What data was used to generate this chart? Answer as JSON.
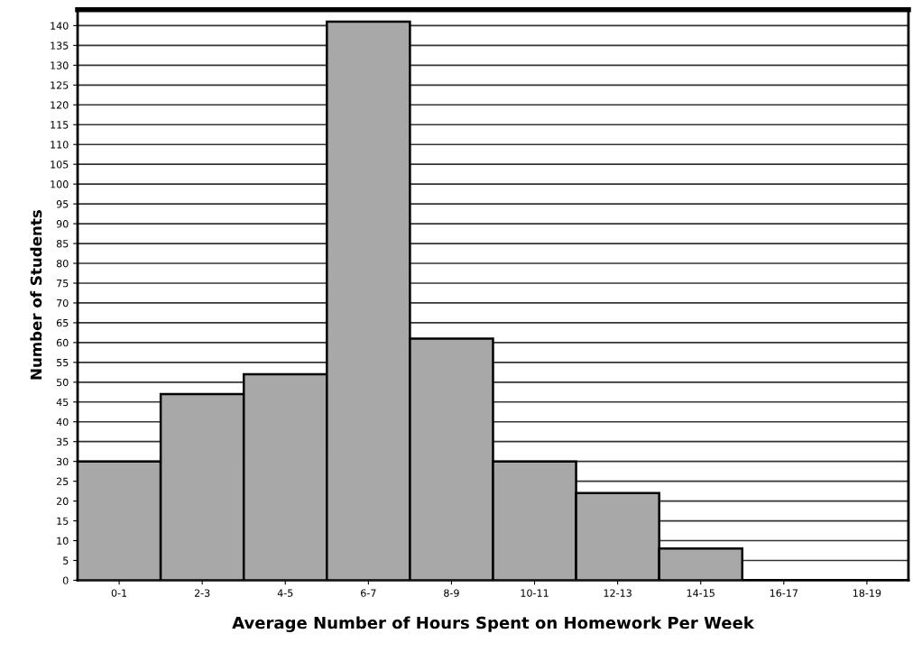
{
  "chart_data": {
    "type": "bar",
    "xlabel": "Average Number of Hours Spent on Homework Per Week",
    "ylabel": "Number of Students",
    "categories": [
      "0-1",
      "2-3",
      "4-5",
      "6-7",
      "8-9",
      "10-11",
      "12-13",
      "14-15",
      "16-17",
      "18-19"
    ],
    "values": [
      30,
      47,
      52,
      141,
      61,
      30,
      22,
      8,
      0,
      0
    ],
    "color": "#a8a8a8",
    "ylim": [
      0,
      144
    ],
    "yticks": [
      0,
      5,
      10,
      15,
      20,
      25,
      30,
      35,
      40,
      45,
      50,
      55,
      60,
      65,
      70,
      75,
      80,
      85,
      90,
      95,
      100,
      105,
      110,
      115,
      120,
      125,
      130,
      135,
      140
    ],
    "grid": "y"
  }
}
